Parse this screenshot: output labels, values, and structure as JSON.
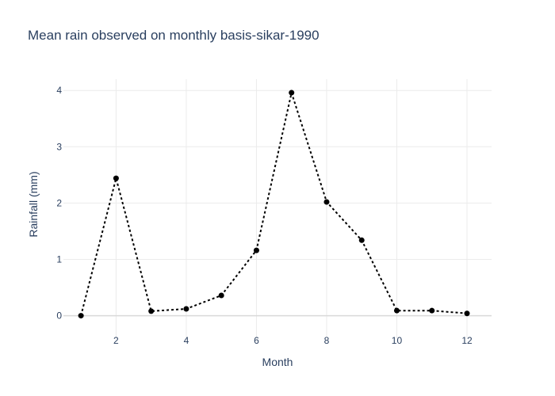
{
  "chart_data": {
    "type": "line",
    "title": "Mean rain observed on monthly basis-sikar-1990",
    "xlabel": "Month",
    "ylabel": "Rainfall (mm)",
    "xlim": [
      0.5,
      12.7
    ],
    "ylim": [
      -0.4,
      4.2
    ],
    "x_ticks": [
      2,
      4,
      6,
      8,
      10,
      12
    ],
    "y_ticks": [
      0,
      1,
      2,
      3,
      4
    ],
    "grid": true,
    "legend": false,
    "series": [
      {
        "line_style": "dotted",
        "marker": "circle",
        "color": "#000000",
        "x": [
          1,
          2,
          3,
          4,
          5,
          6,
          7,
          8,
          9,
          10,
          11,
          12
        ],
        "y": [
          0.0,
          2.44,
          0.08,
          0.12,
          0.36,
          1.16,
          3.96,
          2.02,
          1.34,
          0.09,
          0.09,
          0.04
        ]
      }
    ]
  }
}
